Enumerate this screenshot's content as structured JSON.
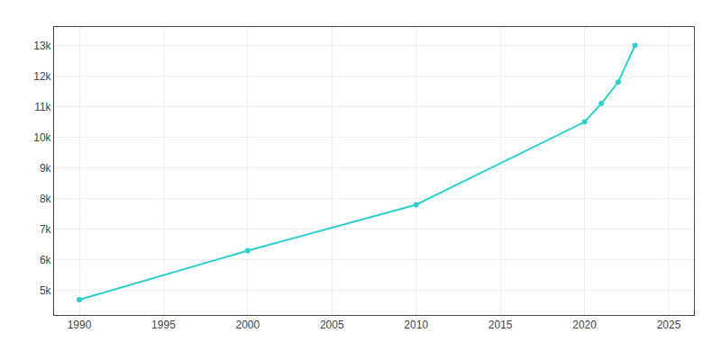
{
  "chart_data": {
    "type": "line",
    "x": [
      1990,
      2000,
      2010,
      2020,
      2021,
      2022,
      2023
    ],
    "values": [
      4700,
      6300,
      7800,
      10500,
      11100,
      11800,
      13000
    ],
    "color": "#2ecfcf",
    "marker": "circle",
    "xlim": [
      1988.5,
      2026.5
    ],
    "xticks": [
      1990,
      1995,
      2000,
      2005,
      2010,
      2015,
      2020,
      2025
    ],
    "ylim": [
      4200,
      13600
    ],
    "yticks": [
      {
        "value": 5000,
        "label": "5k"
      },
      {
        "value": 6000,
        "label": "6k"
      },
      {
        "value": 7000,
        "label": "7k"
      },
      {
        "value": 8000,
        "label": "8k"
      },
      {
        "value": 9000,
        "label": "9k"
      },
      {
        "value": 10000,
        "label": "10k"
      },
      {
        "value": 11000,
        "label": "11k"
      },
      {
        "value": 12000,
        "label": "12k"
      },
      {
        "value": 13000,
        "label": "13k"
      }
    ],
    "grid": true
  }
}
